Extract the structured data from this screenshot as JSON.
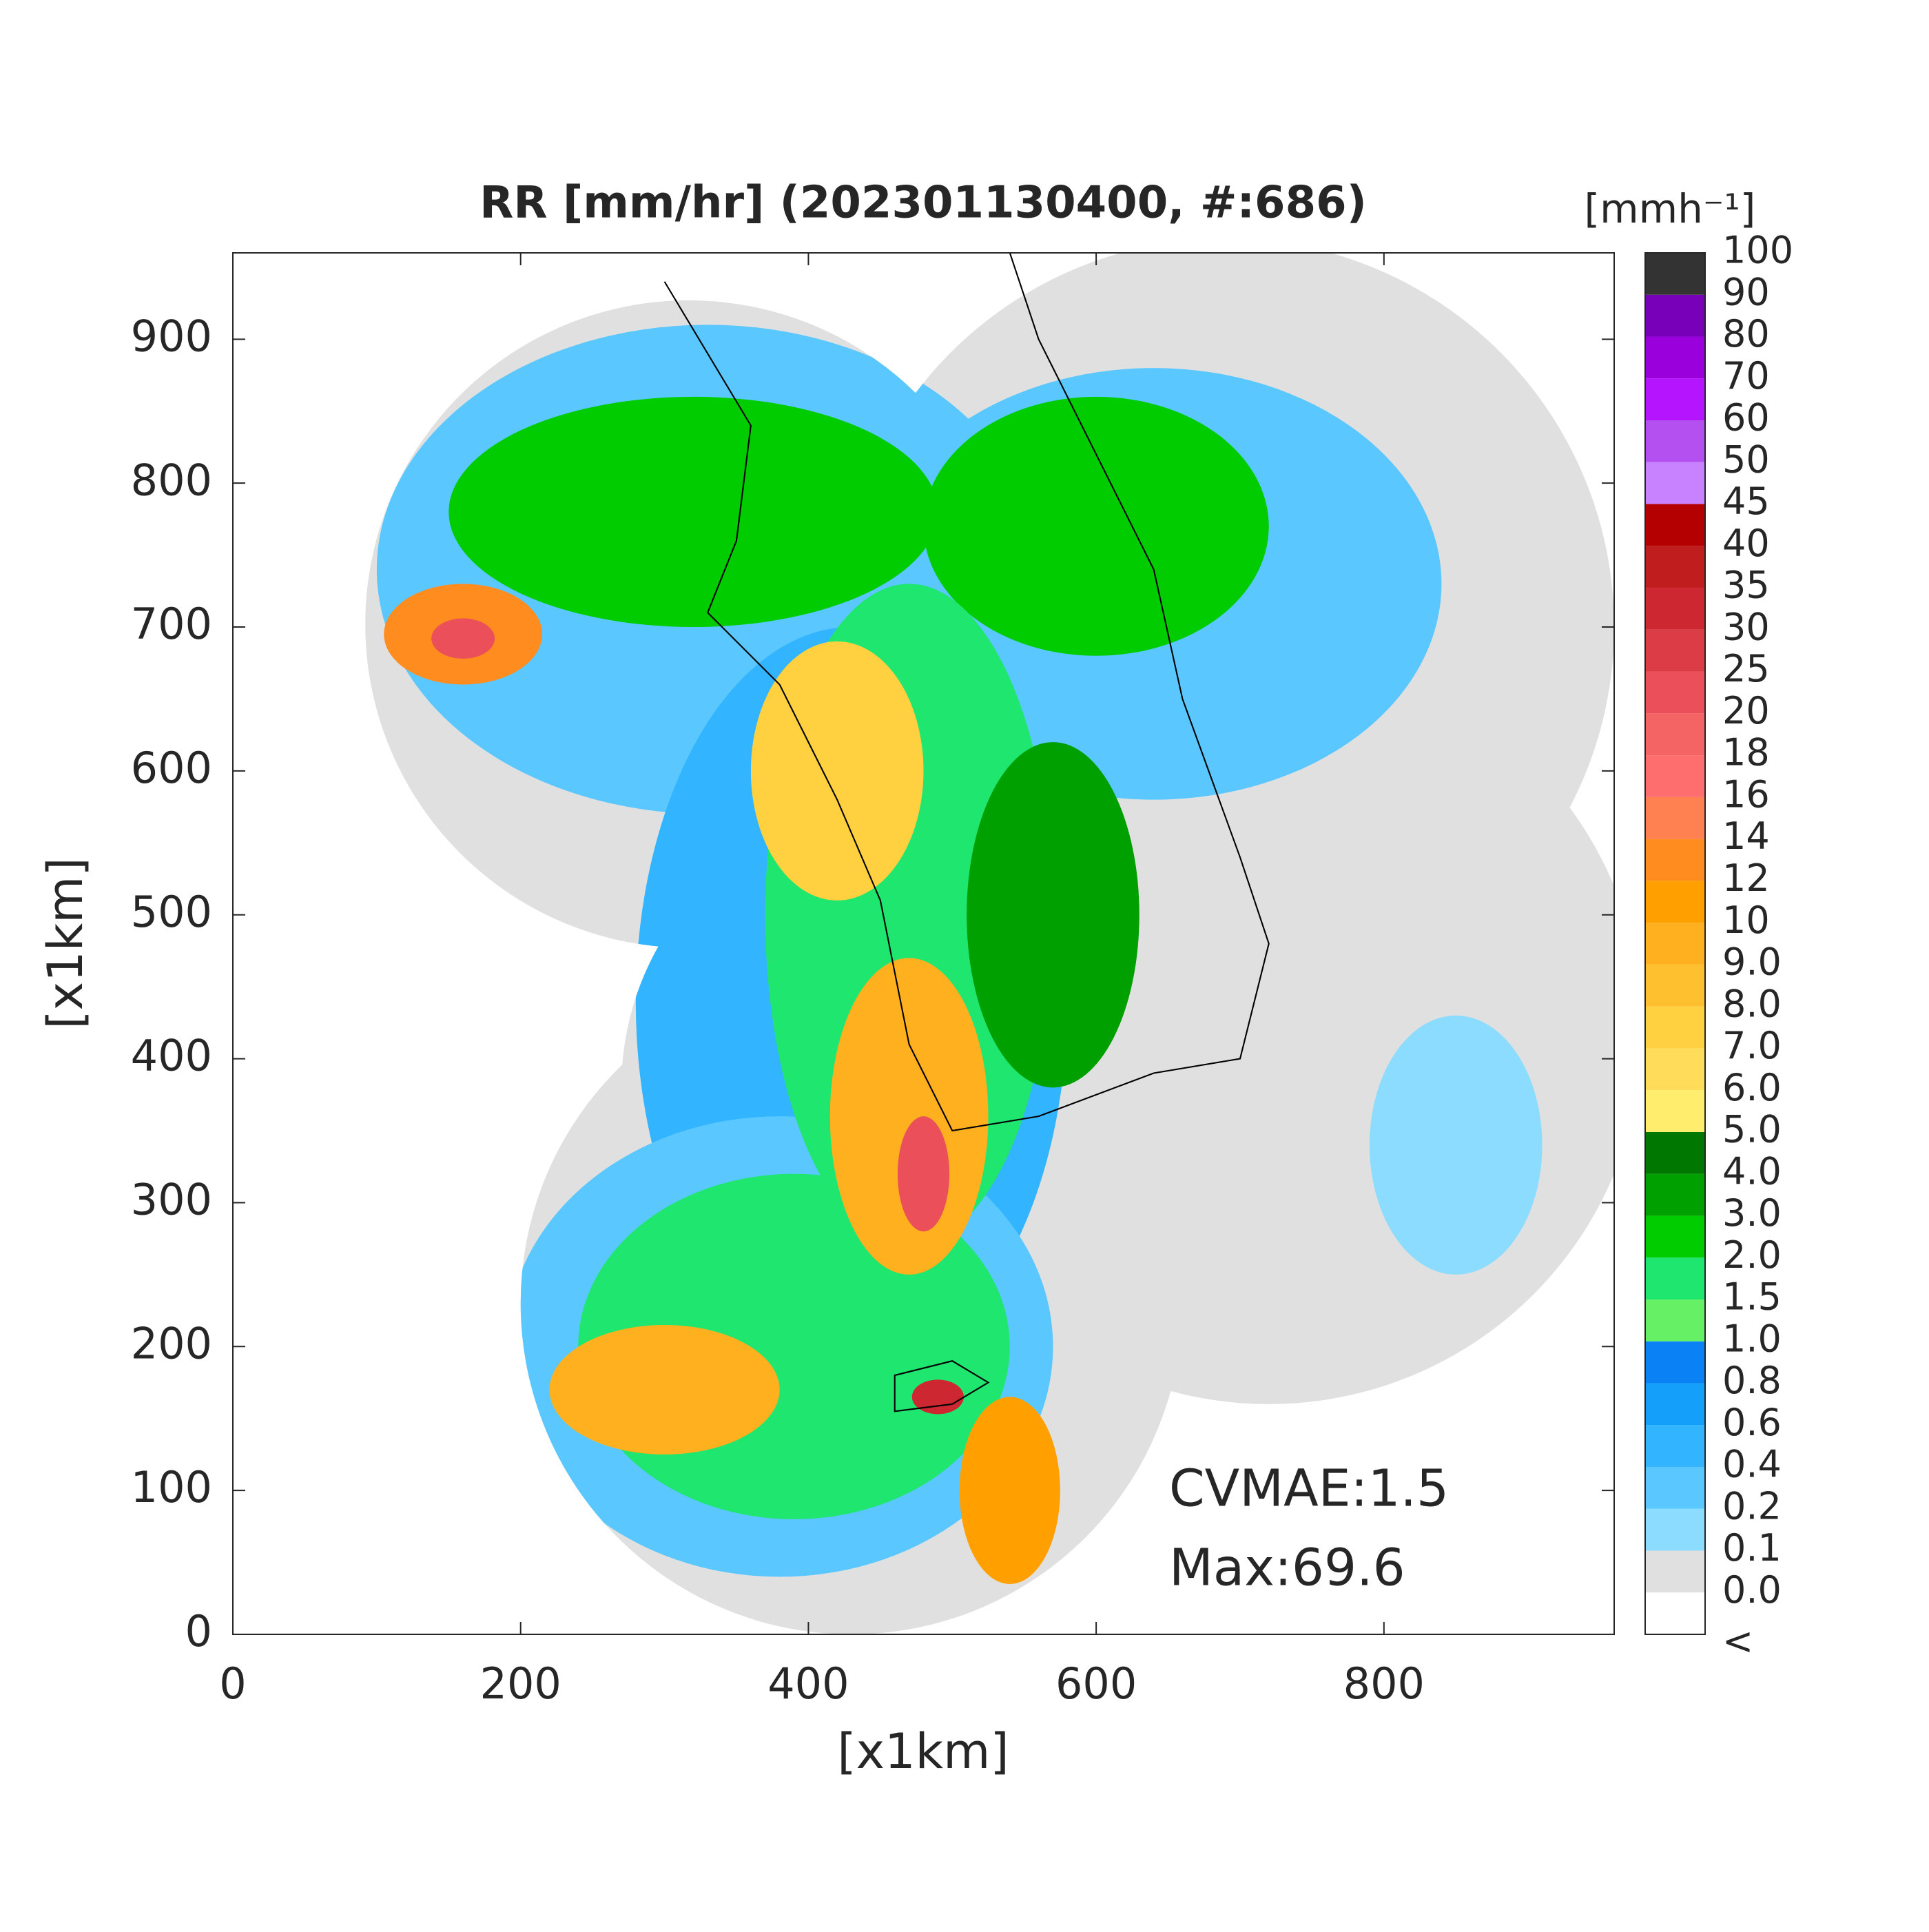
{
  "chart_data": {
    "type": "radar-map",
    "title": "RR [mm/hr] (202301130400, #:686)",
    "xlabel": "[x1km]",
    "ylabel": "[x1km]",
    "xlim": [
      0,
      960
    ],
    "ylim": [
      0,
      960
    ],
    "xticks": [
      0,
      200,
      400,
      600,
      800
    ],
    "yticks": [
      0,
      100,
      200,
      300,
      400,
      500,
      600,
      700,
      800,
      900
    ],
    "annotations": [
      "CVMAE:1.5",
      "Max:69.6"
    ],
    "colorbar": {
      "label": "[mmh⁻¹]",
      "levels": [
        "<",
        "0.0",
        "0.1",
        "0.2",
        "0.4",
        "0.6",
        "0.8",
        "1.0",
        "1.5",
        "2.0",
        "3.0",
        "4.0",
        "5.0",
        "6.0",
        "7.0",
        "8.0",
        "9.0",
        "10",
        "12",
        "14",
        "16",
        "18",
        "20",
        "25",
        "30",
        "35",
        "40",
        "45",
        "50",
        "60",
        "70",
        "80",
        "90",
        "100"
      ],
      "colors": [
        "#ffffff",
        "#e0e0e0",
        "#8cdcff",
        "#5ac8ff",
        "#32b4ff",
        "#14a0fa",
        "#0a82f5",
        "#66f066",
        "#1ee66e",
        "#00cc00",
        "#00a000",
        "#007800",
        "#ffee6e",
        "#ffdd5a",
        "#ffd040",
        "#ffc030",
        "#ffb01e",
        "#ffa000",
        "#ff8c1e",
        "#ff8050",
        "#ff6e6e",
        "#f56464",
        "#eb505a",
        "#dc3c46",
        "#cd2832",
        "#c01e1e",
        "#b40000",
        "#c882ff",
        "#b450f0",
        "#b414ff",
        "#9a00dc",
        "#7800b8",
        "#333333"
      ]
    }
  }
}
